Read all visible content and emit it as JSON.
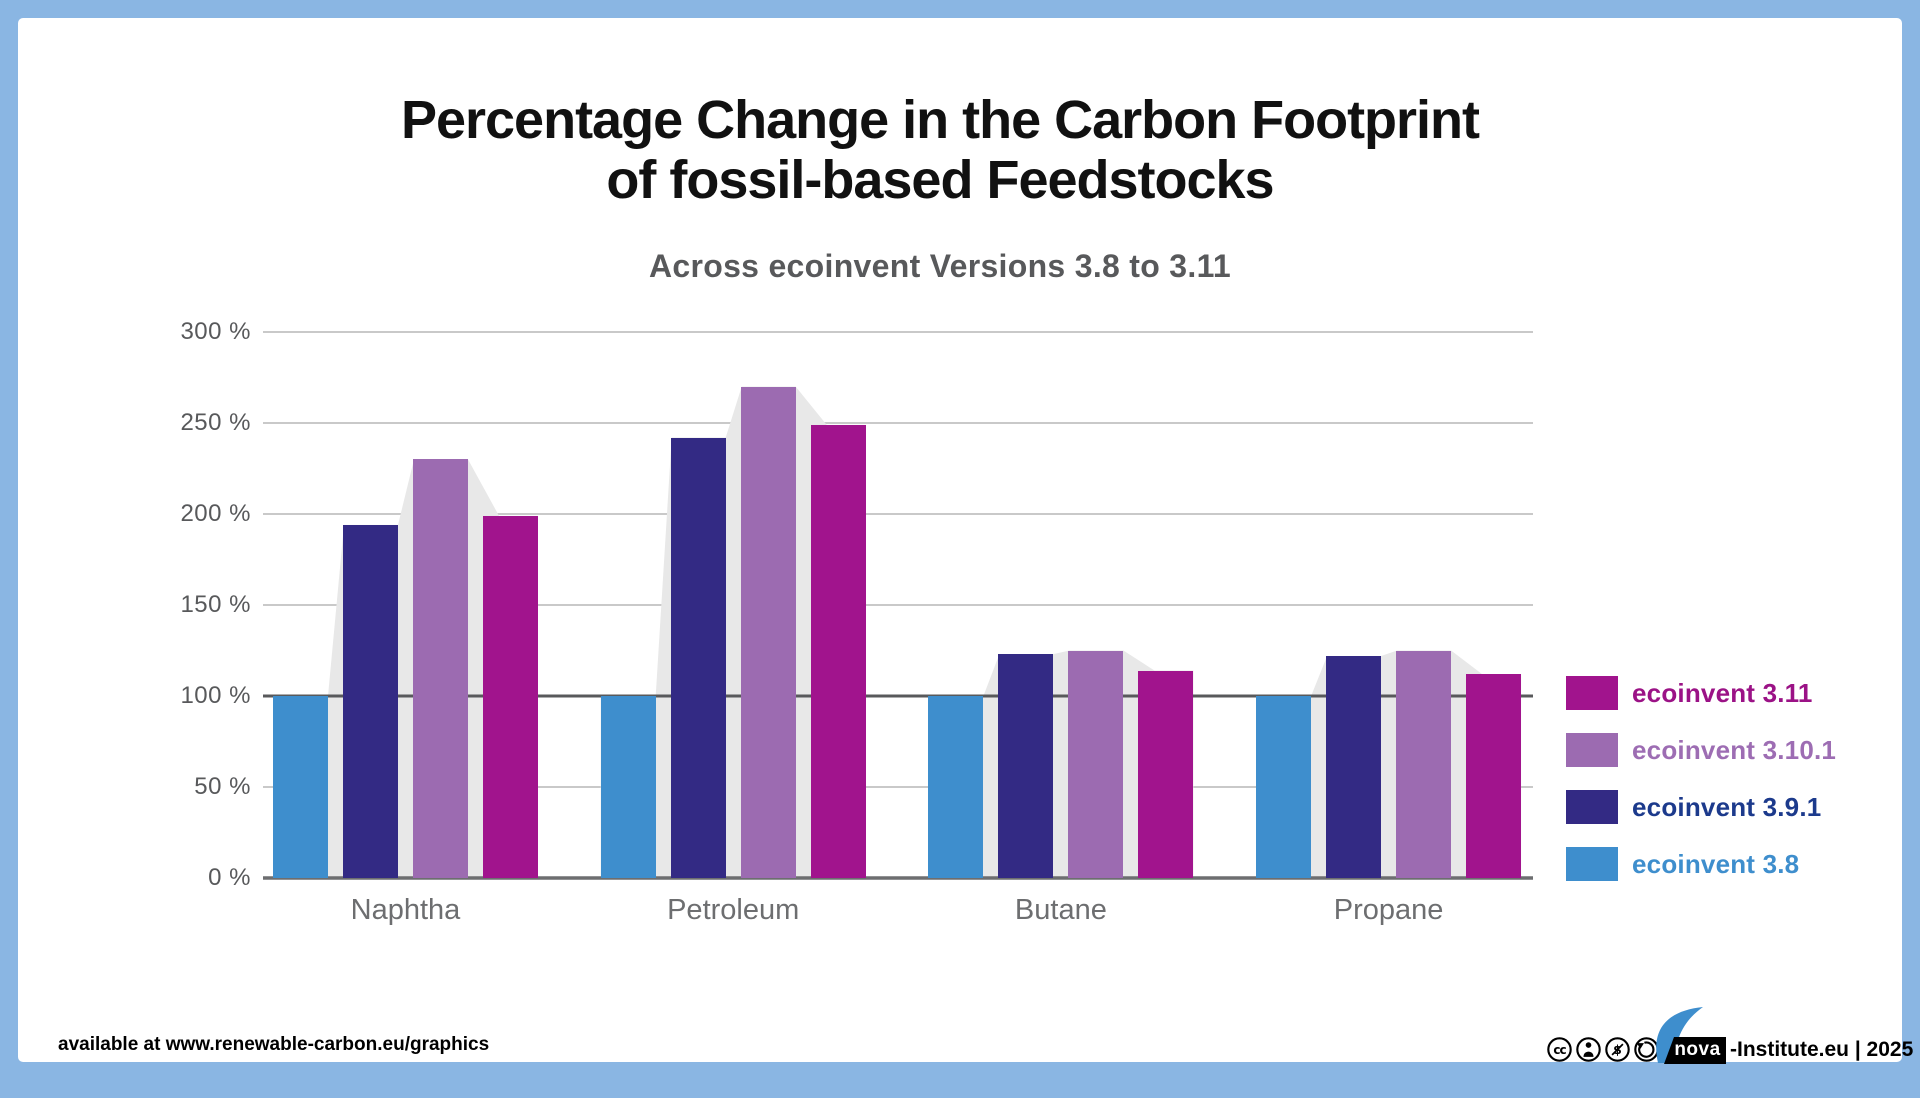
{
  "header": {
    "title": "Percentage Change in the Carbon Footprint\nof fossil-based Feedstocks",
    "subtitle": "Across ecoinvent Versions 3.8 to 3.11"
  },
  "chart_data": {
    "type": "bar",
    "title": "Percentage Change in the Carbon Footprint of fossil-based Feedstocks",
    "subtitle": "Across ecoinvent Versions 3.8 to 3.11",
    "categories": [
      "Naphtha",
      "Petroleum",
      "Butane",
      "Propane"
    ],
    "series": [
      {
        "name": "ecoinvent 3.8",
        "color": "#3e8ecd",
        "label_color": "#3e8ecd",
        "values": [
          100,
          100,
          100,
          100
        ]
      },
      {
        "name": "ecoinvent 3.9.1",
        "color": "#332a84",
        "label_color": "#1c3a8c",
        "values": [
          194,
          242,
          123,
          122
        ]
      },
      {
        "name": "ecoinvent 3.10.1",
        "color": "#9c6bb1",
        "label_color": "#9d6db3",
        "values": [
          230,
          270,
          125,
          125
        ]
      },
      {
        "name": "ecoinvent 3.11",
        "color": "#a1148d",
        "label_color": "#9b1286",
        "values": [
          199,
          249,
          114,
          112
        ]
      }
    ],
    "y_ticks": [
      0,
      50,
      100,
      150,
      200,
      250,
      300
    ],
    "y_tick_suffix": " %",
    "ylim": [
      0,
      300
    ],
    "baseline_value": 100,
    "grid": true,
    "legend_position": "right",
    "legend_order": [
      "ecoinvent 3.11",
      "ecoinvent 3.10.1",
      "ecoinvent 3.9.1",
      "ecoinvent 3.8"
    ],
    "silhouette_color": "#e8e8e8",
    "gridline_color": "#c9c9c9",
    "baseline_color": "#58595b",
    "axis_color": "#6d6e70"
  },
  "footer": {
    "available_text": "available at www.renewable-carbon.eu/graphics",
    "license_icons": [
      "cc",
      "by",
      "nc",
      "sa"
    ],
    "logo_text": "nova",
    "credit_text": "-Institute.eu | 2025"
  }
}
